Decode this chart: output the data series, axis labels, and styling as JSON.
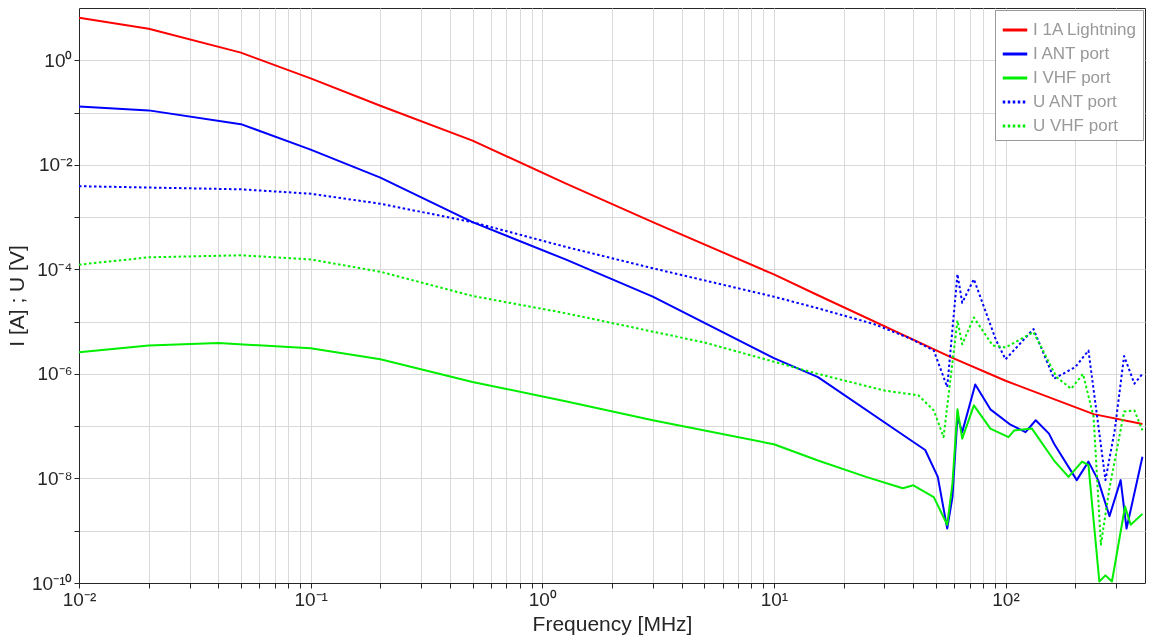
{
  "chart_data": {
    "type": "line",
    "xlabel": "Frequency [MHz]",
    "ylabel": "I [A] ; U [V]",
    "log": "xy",
    "grid": true,
    "legend": "top right",
    "marker": "none",
    "xlim": [
      0.01,
      400
    ],
    "ylim": [
      1e-10,
      10
    ],
    "xticks": [
      {
        "value": 0.01,
        "label": "10⁻²"
      },
      {
        "value": 0.02,
        "label": null
      },
      {
        "value": 0.03,
        "label": null
      },
      {
        "value": 0.04,
        "label": null
      },
      {
        "value": 0.05,
        "label": null
      },
      {
        "value": 0.06,
        "label": null
      },
      {
        "value": 0.07,
        "label": null
      },
      {
        "value": 0.08,
        "label": null
      },
      {
        "value": 0.09,
        "label": null
      },
      {
        "value": 0.1,
        "label": "10⁻¹"
      },
      {
        "value": 0.2,
        "label": null
      },
      {
        "value": 0.3,
        "label": null
      },
      {
        "value": 0.4,
        "label": null
      },
      {
        "value": 0.5,
        "label": null
      },
      {
        "value": 0.6,
        "label": null
      },
      {
        "value": 0.7,
        "label": null
      },
      {
        "value": 0.8,
        "label": null
      },
      {
        "value": 0.9,
        "label": null
      },
      {
        "value": 1,
        "label": "10⁰"
      },
      {
        "value": 2,
        "label": null
      },
      {
        "value": 3,
        "label": null
      },
      {
        "value": 4,
        "label": null
      },
      {
        "value": 5,
        "label": null
      },
      {
        "value": 6,
        "label": null
      },
      {
        "value": 7,
        "label": null
      },
      {
        "value": 8,
        "label": null
      },
      {
        "value": 9,
        "label": null
      },
      {
        "value": 10,
        "label": "10¹"
      },
      {
        "value": 20,
        "label": null
      },
      {
        "value": 30,
        "label": null
      },
      {
        "value": 40,
        "label": null
      },
      {
        "value": 50,
        "label": null
      },
      {
        "value": 60,
        "label": null
      },
      {
        "value": 70,
        "label": null
      },
      {
        "value": 80,
        "label": null
      },
      {
        "value": 90,
        "label": null
      },
      {
        "value": 100,
        "label": "10²"
      },
      {
        "value": 200,
        "label": null
      },
      {
        "value": 300,
        "label": null
      }
    ],
    "yticks": [
      {
        "value": 1e-10,
        "label": "10⁻¹⁰"
      },
      {
        "value": 1e-09,
        "label": null
      },
      {
        "value": 1e-08,
        "label": "10⁻⁸"
      },
      {
        "value": 1e-07,
        "label": null
      },
      {
        "value": 1e-06,
        "label": "10⁻⁶"
      },
      {
        "value": 1e-05,
        "label": null
      },
      {
        "value": 0.0001,
        "label": "10⁻⁴"
      },
      {
        "value": 0.001,
        "label": null
      },
      {
        "value": 0.01,
        "label": "10⁻²"
      },
      {
        "value": 0.1,
        "label": null
      },
      {
        "value": 1,
        "label": "10⁰"
      }
    ],
    "series": [
      {
        "name": "I 1A Lightning",
        "color": "#ff0000",
        "line_style": "solid",
        "x": [
          0.01,
          0.02,
          0.05,
          0.1,
          0.2,
          0.5,
          1.26,
          3,
          10,
          15.5,
          58,
          100,
          240,
          390
        ],
        "values": [
          6.5,
          4,
          1.4,
          0.45,
          0.135,
          0.029,
          0.0044,
          0.0008,
          8e-05,
          3.2e-05,
          2.1e-06,
          7.4e-07,
          1.7e-07,
          1.1e-07
        ]
      },
      {
        "name": "I ANT port",
        "color": "#0000ff",
        "line_style": "solid",
        "x": [
          0.01,
          0.02,
          0.05,
          0.1,
          0.2,
          0.5,
          1.26,
          3,
          10,
          15.5,
          38,
          45,
          51,
          56,
          59,
          62,
          65,
          74,
          86,
          104,
          122,
          135,
          154,
          162,
          203,
          228,
          251,
          281,
          314,
          333,
          390
        ],
        "values": [
          0.13,
          0.11,
          0.06,
          0.0195,
          0.0057,
          0.0008,
          0.000155,
          3e-05,
          2e-06,
          8.7e-07,
          5.8e-08,
          3.5e-08,
          1.07e-08,
          1.1e-09,
          4.4e-09,
          1.5e-07,
          7.7e-08,
          6.3e-07,
          2.1e-07,
          1.1e-07,
          7.7e-08,
          1.3e-07,
          7.2e-08,
          4.6e-08,
          9.3e-09,
          2.1e-08,
          9.3e-09,
          1.9e-09,
          9.3e-09,
          1.1e-09,
          2.6e-08
        ]
      },
      {
        "name": "I VHF port",
        "color": "#00ee00",
        "line_style": "solid",
        "x": [
          0.01,
          0.02,
          0.04,
          0.1,
          0.2,
          0.5,
          1.26,
          3,
          10,
          15.5,
          25,
          36,
          40,
          49,
          56,
          59,
          62,
          65,
          73,
          86,
          103,
          109,
          130,
          162,
          187,
          214,
          228,
          254,
          270,
          288,
          328,
          347,
          390
        ],
        "values": [
          2.6e-06,
          3.5e-06,
          3.9e-06,
          3.1e-06,
          1.9e-06,
          7e-07,
          3e-07,
          1.3e-07,
          4.5e-08,
          2.2e-08,
          1.07e-08,
          6.5e-09,
          7.4e-09,
          4.4e-09,
          1.3e-09,
          8e-09,
          2.1e-07,
          5.8e-08,
          2.5e-07,
          9e-08,
          6.2e-08,
          8.3e-08,
          9e-08,
          2.2e-08,
          1.07e-08,
          2.1e-08,
          1.8e-08,
          1.07e-10,
          1.4e-10,
          1.07e-10,
          2.9e-09,
          1.3e-09,
          2.1e-09
        ]
      },
      {
        "name": "U ANT port",
        "color": "#0000ff",
        "line_style": "dotted",
        "x": [
          0.01,
          0.05,
          0.1,
          0.2,
          0.5,
          1.26,
          3,
          10,
          15.5,
          27,
          39,
          49,
          56,
          62,
          65,
          73,
          91,
          100,
          132,
          162,
          200,
          228,
          251,
          270,
          296,
          325,
          360,
          390
        ],
        "values": [
          0.0039,
          0.0034,
          0.0028,
          0.0018,
          0.0008,
          0.00027,
          0.000105,
          3e-05,
          1.8e-05,
          9e-06,
          4.7e-06,
          2.8e-06,
          5.6e-07,
          8.1e-05,
          2.3e-05,
          6.5e-05,
          4.4e-06,
          1.9e-06,
          7.2e-06,
          8.1e-07,
          1.35e-06,
          2.8e-06,
          1.1e-07,
          9.3e-09,
          8.3e-08,
          2.2e-06,
          6.5e-07,
          1e-06
        ]
      },
      {
        "name": "U VHF port",
        "color": "#00ee00",
        "line_style": "dotted",
        "x": [
          0.01,
          0.02,
          0.05,
          0.1,
          0.2,
          0.5,
          1.26,
          5,
          15.5,
          30,
          42,
          49,
          54,
          62,
          65,
          73,
          88,
          100,
          132,
          166,
          192,
          216,
          240,
          258,
          280,
          325,
          360,
          390
        ],
        "values": [
          0.000123,
          0.00017,
          0.000186,
          0.000155,
          9e-05,
          3.1e-05,
          1.45e-05,
          4e-06,
          1e-06,
          4.8e-07,
          3.9e-07,
          2e-07,
          6.2e-08,
          1.05e-05,
          3.7e-06,
          1.2e-05,
          3.5e-06,
          3.2e-06,
          6.3e-06,
          8.7e-07,
          5.2e-07,
          1e-06,
          1.5e-07,
          5.4e-10,
          6e-09,
          1.9e-07,
          2e-07,
          8.3e-08
        ]
      }
    ]
  }
}
